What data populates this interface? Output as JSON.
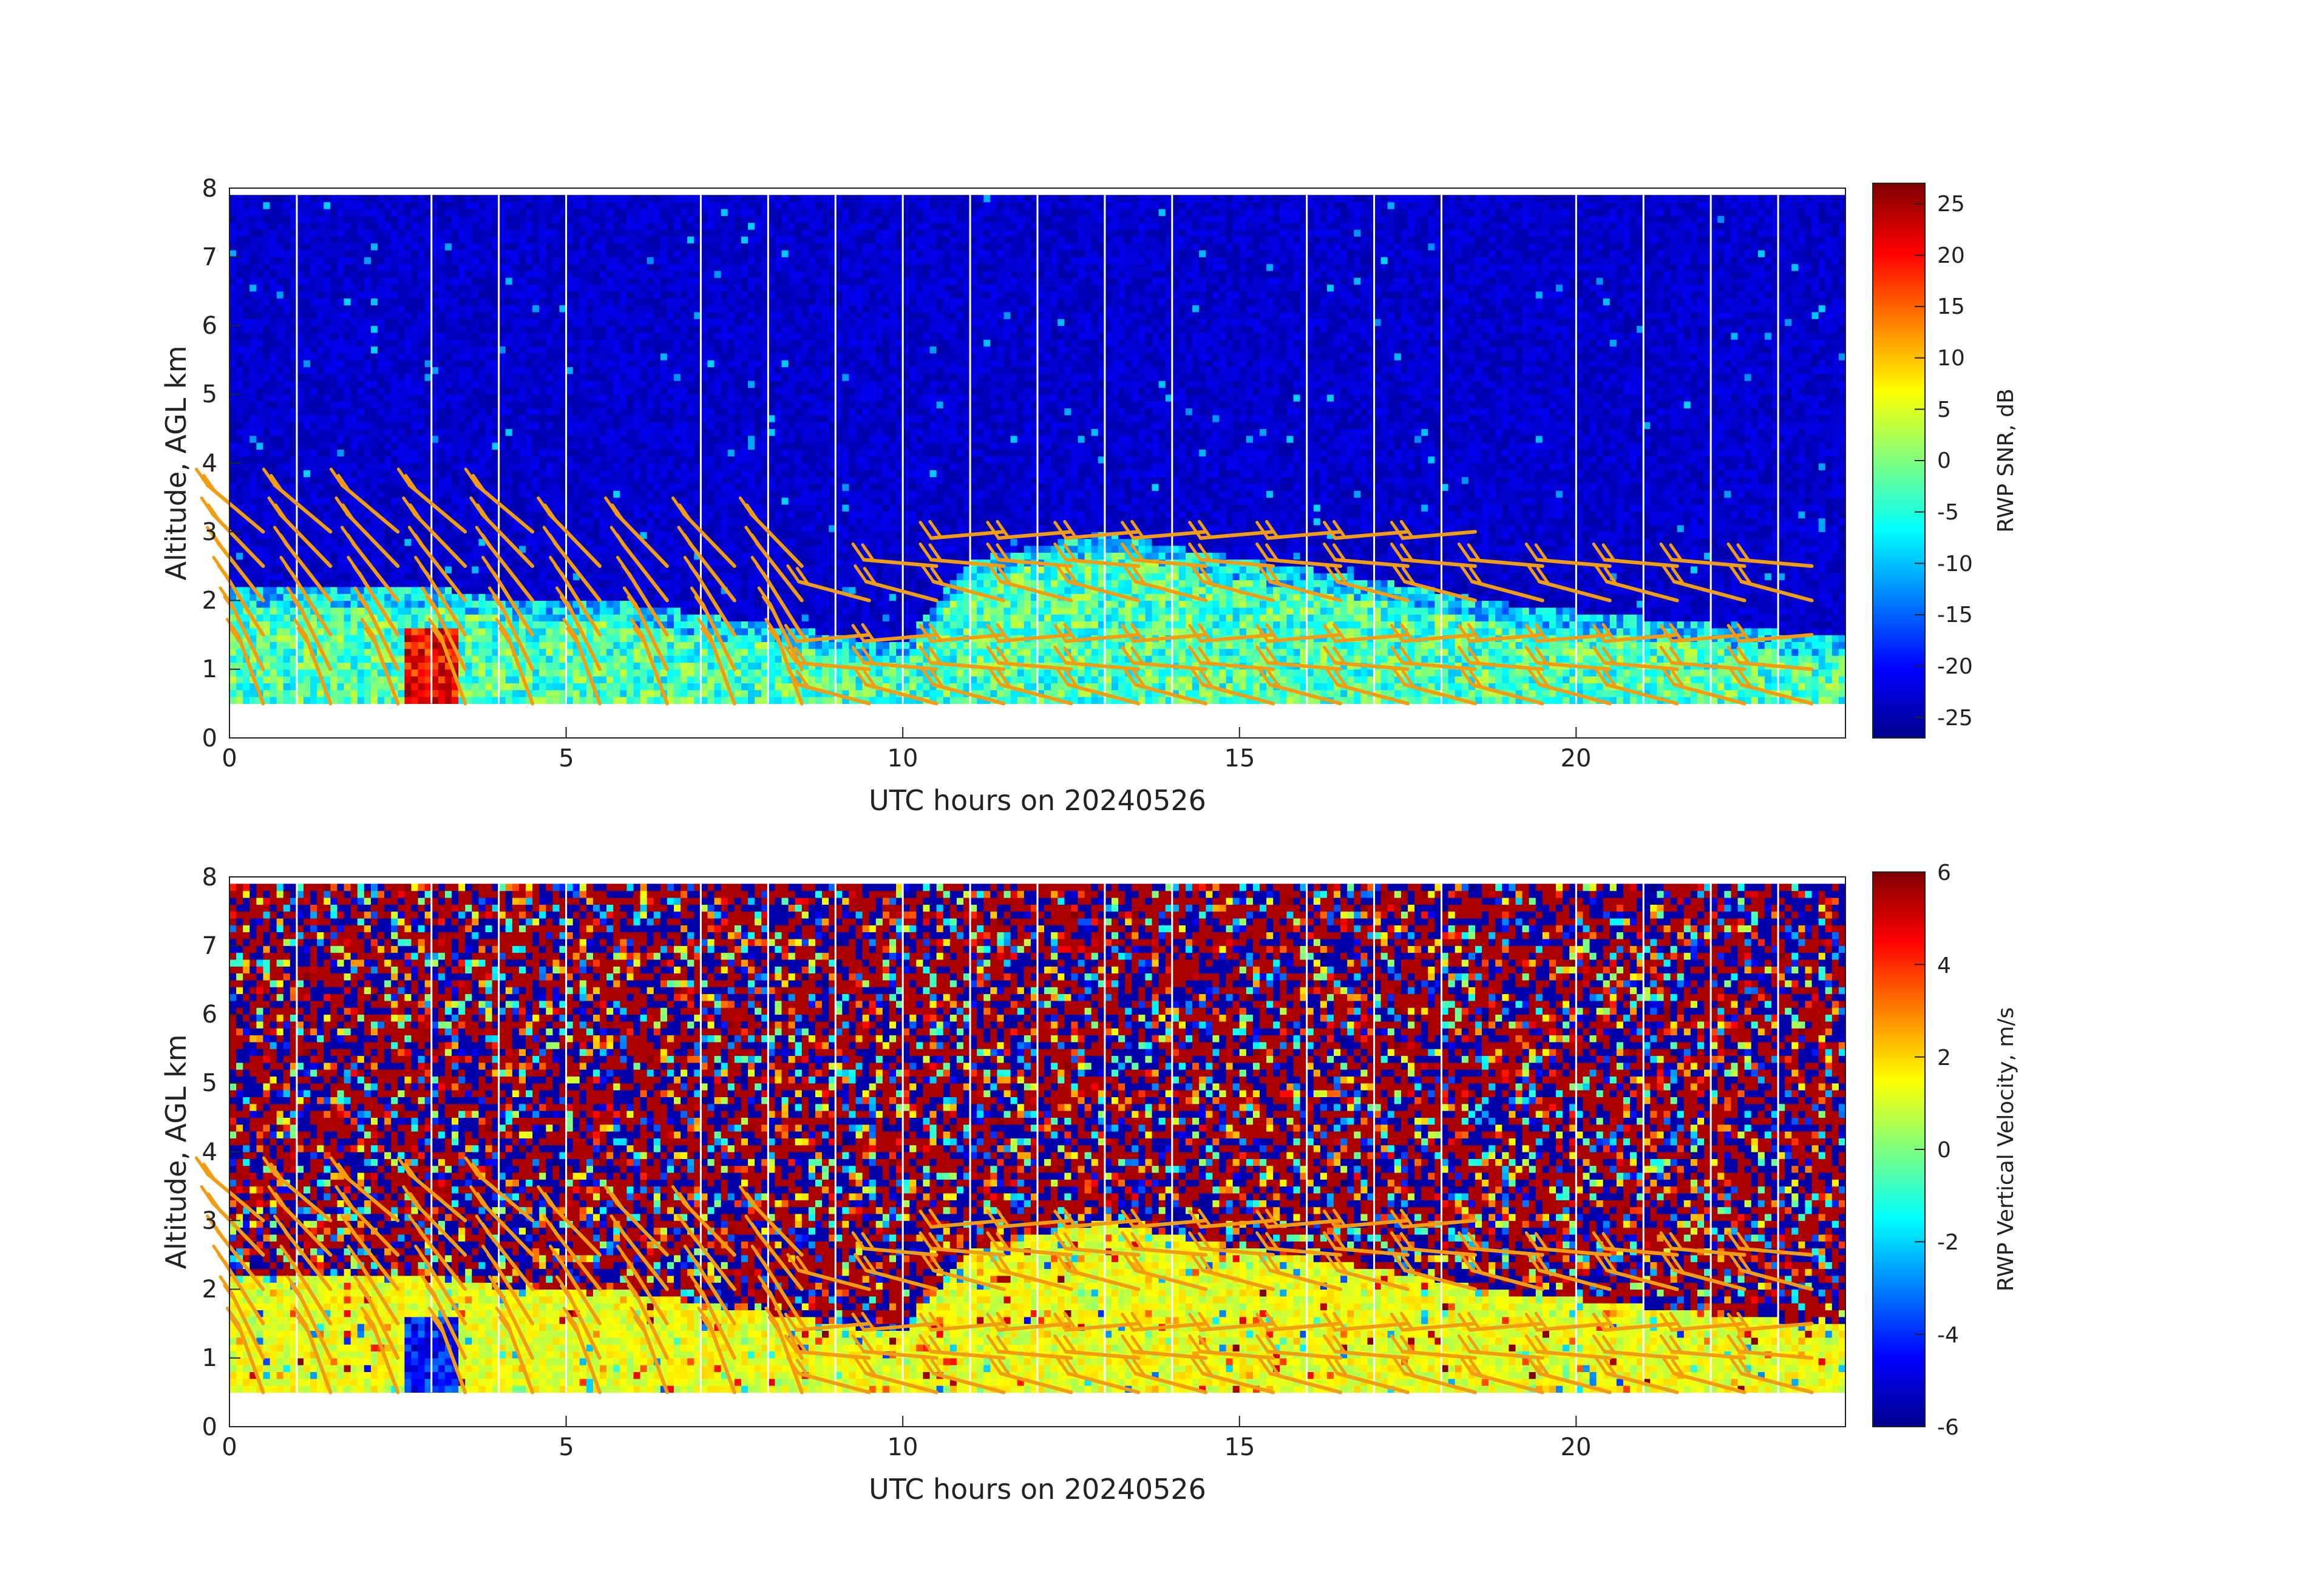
{
  "panels": [
    {
      "id": "snr",
      "xlabel": "UTC hours on 20240526",
      "ylabel": "Altitude, AGL km",
      "x_ticks": [
        "0",
        "5",
        "10",
        "15",
        "20"
      ],
      "y_ticks": [
        "0",
        "1",
        "2",
        "3",
        "4",
        "5",
        "6",
        "7",
        "8"
      ],
      "colorbar_label": "RWP SNR, dB",
      "colorbar_ticks": [
        "25",
        "20",
        "15",
        "10",
        "5",
        "0",
        "-5",
        "-10",
        "-15",
        "-20",
        "-25"
      ]
    },
    {
      "id": "w",
      "xlabel": "UTC hours on 20240526",
      "ylabel": "Altitude, AGL km",
      "x_ticks": [
        "0",
        "5",
        "10",
        "15",
        "20"
      ],
      "y_ticks": [
        "0",
        "1",
        "2",
        "3",
        "4",
        "5",
        "6",
        "7",
        "8"
      ],
      "colorbar_label": "RWP Vertical Velocity, m/s",
      "colorbar_ticks": [
        "6",
        "4",
        "2",
        "0",
        "-2",
        "-4",
        "-6"
      ]
    }
  ],
  "chart_data": [
    {
      "type": "heatmap",
      "variable": "RWP SNR, dB",
      "xlabel": "UTC hours on 20240526",
      "ylabel": "Altitude, AGL km",
      "xlim": [
        0,
        24
      ],
      "ylim": [
        0,
        8
      ],
      "x_ticks": [
        0,
        5,
        10,
        15,
        20
      ],
      "y_ticks": [
        0,
        1,
        2,
        3,
        4,
        5,
        6,
        7,
        8
      ],
      "data_extent": {
        "x": [
          0,
          24
        ],
        "y": [
          0.5,
          7.9
        ]
      },
      "colormap": "jet",
      "clim": [
        -27,
        27
      ],
      "colorbar_ticks": [
        25,
        20,
        15,
        10,
        5,
        0,
        -5,
        -10,
        -15,
        -20,
        -25
      ],
      "background_snr_db": -23,
      "boundary_layer_top_km": [
        [
          0,
          2.2
        ],
        [
          3,
          2.2
        ],
        [
          4,
          2.05
        ],
        [
          6,
          1.95
        ],
        [
          8,
          1.65
        ],
        [
          10,
          1.35
        ],
        [
          11,
          2.6
        ],
        [
          13,
          3.0
        ],
        [
          14.5,
          2.7
        ],
        [
          17,
          2.3
        ],
        [
          19,
          1.95
        ],
        [
          21,
          1.75
        ],
        [
          24,
          1.45
        ]
      ],
      "high_snr_feature": {
        "x_range": [
          2.6,
          3.4
        ],
        "y_range": [
          0.5,
          1.6
        ],
        "peak_db": 26
      },
      "data_gaps_hours": [
        1,
        3,
        4,
        5,
        7,
        8,
        9,
        10,
        11,
        12,
        13,
        14,
        16,
        17,
        18,
        20,
        21,
        22,
        23
      ],
      "wind_barb_color": "#f39c12",
      "wind_barb_times_hours": [
        0.5,
        1.5,
        2.5,
        3.5,
        4.5,
        5.5,
        6.5,
        7.5,
        8.5,
        9.5,
        10.5,
        11.5,
        12.5,
        13.5,
        14.5,
        15.5,
        16.5,
        17.5,
        18.5,
        19.5,
        20.5,
        21.5,
        22.5,
        23.5
      ]
    },
    {
      "type": "heatmap",
      "variable": "RWP Vertical Velocity, m/s",
      "xlabel": "UTC hours on 20240526",
      "ylabel": "Altitude, AGL km",
      "xlim": [
        0,
        24
      ],
      "ylim": [
        0,
        8
      ],
      "x_ticks": [
        0,
        5,
        10,
        15,
        20
      ],
      "y_ticks": [
        0,
        1,
        2,
        3,
        4,
        5,
        6,
        7,
        8
      ],
      "data_extent": {
        "x": [
          0,
          24
        ],
        "y": [
          0.5,
          7.9
        ]
      },
      "colormap": "jet",
      "clim": [
        -6,
        6
      ],
      "colorbar_ticks": [
        6,
        4,
        2,
        0,
        -2,
        -4,
        -6
      ],
      "aloft_pattern": "noise (values spanning -6 to 6 m/s)",
      "boundary_layer_velocity_ms": [
        0.5,
        2
      ],
      "downdraft_feature": {
        "x_range": [
          2.6,
          3.4
        ],
        "y_range": [
          0.5,
          1.6
        ],
        "min_ms": -5.5
      },
      "data_gaps_hours": [
        1,
        3,
        4,
        5,
        7,
        8,
        9,
        10,
        11,
        12,
        13,
        14,
        16,
        17,
        18,
        20,
        21,
        22,
        23
      ],
      "wind_barb_color": "#f39c12",
      "wind_barb_times_hours": [
        0.5,
        1.5,
        2.5,
        3.5,
        4.5,
        5.5,
        6.5,
        7.5,
        8.5,
        9.5,
        10.5,
        11.5,
        12.5,
        13.5,
        14.5,
        15.5,
        16.5,
        17.5,
        18.5,
        19.5,
        20.5,
        21.5,
        22.5,
        23.5
      ]
    }
  ]
}
